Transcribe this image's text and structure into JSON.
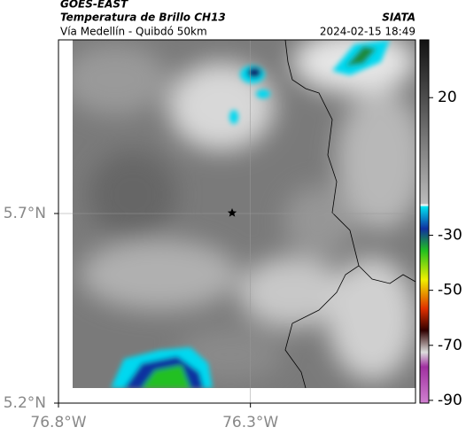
{
  "header": {
    "source": "GOES-EAST",
    "product": "Temperatura de Brillo CH13",
    "route": "Vía Medellín - Quibdó 50km",
    "agency": "SIATA",
    "datetime": "2024-02-15 18:49"
  },
  "map": {
    "lonlim": [
      -76.8,
      -75.87
    ],
    "latlim": [
      5.2,
      6.158
    ],
    "lon_ticks": [
      {
        "value": -76.8,
        "label": "76.8°W"
      },
      {
        "value": -76.3,
        "label": "76.3°W"
      }
    ],
    "lat_ticks": [
      {
        "value": 5.7,
        "label": "5.7°N"
      },
      {
        "value": 5.2,
        "label": "5.2°N"
      }
    ],
    "grid": true
  },
  "colorbar": {
    "clim": [
      -91,
      41
    ],
    "ticks": [
      20,
      -30,
      -50,
      -70,
      -90
    ]
  }
}
